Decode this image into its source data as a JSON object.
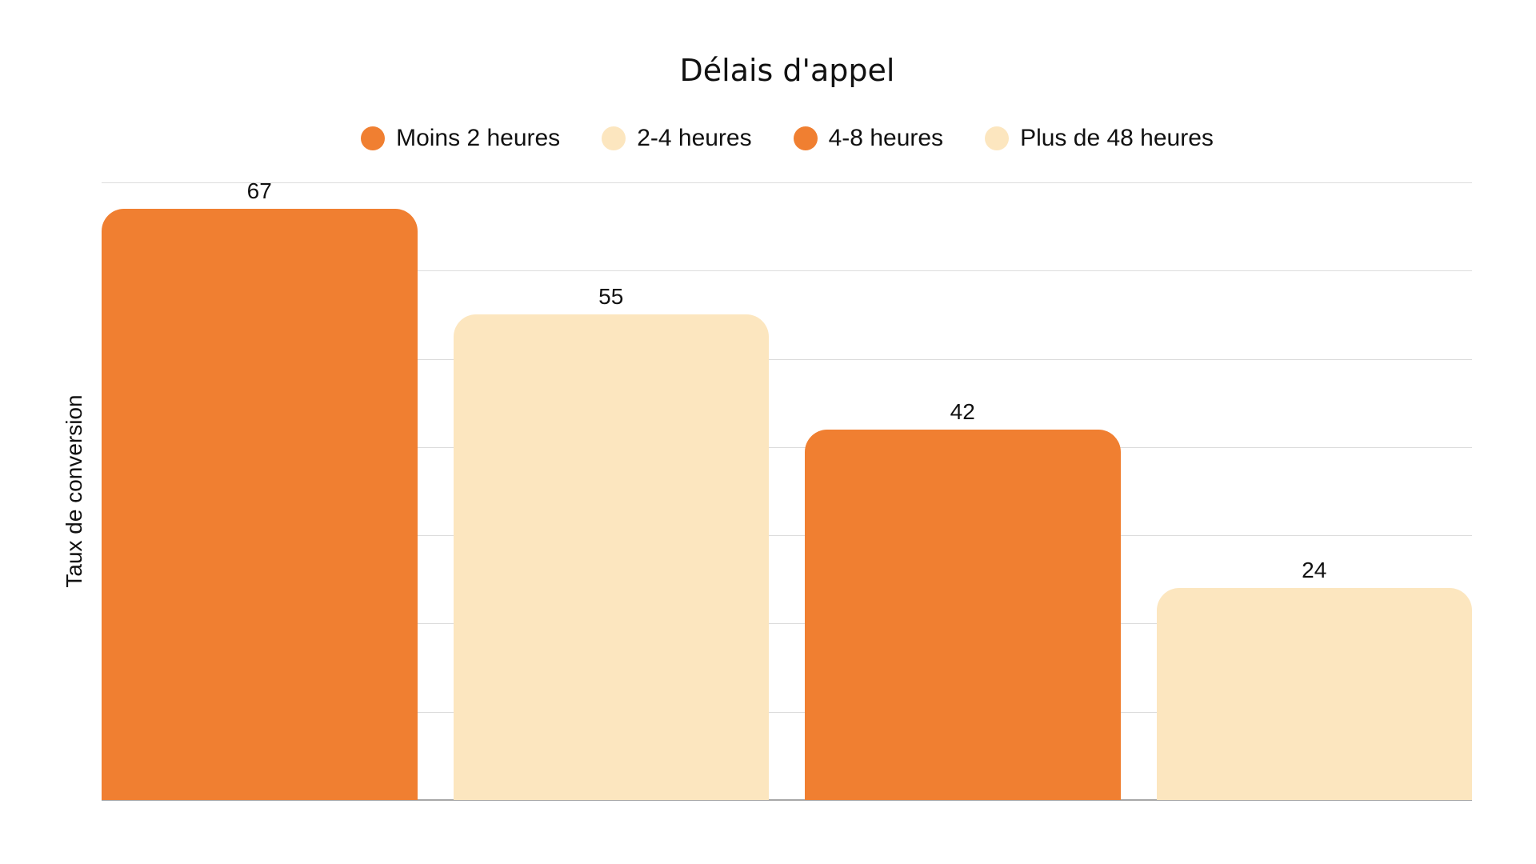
{
  "title": "Délais d'appel",
  "legend": [
    {
      "label": "Moins 2 heures",
      "color": "#F07F31"
    },
    {
      "label": "2-4 heures",
      "color": "#FCE6BF"
    },
    {
      "label": "4-8 heures",
      "color": "#F07F31"
    },
    {
      "label": "Plus de 48 heures",
      "color": "#FCE6BF"
    }
  ],
  "chart_data": {
    "type": "bar",
    "title": "Délais d'appel",
    "xlabel": "",
    "ylabel": "Taux de conversion",
    "categories": [
      "Moins 2 heures",
      "2-4 heures",
      "4-8 heures",
      "Plus de 48 heures"
    ],
    "values": [
      67,
      55,
      42,
      24
    ],
    "colors": [
      "#F07F31",
      "#FCE6BF",
      "#F07F31",
      "#FCE6BF"
    ],
    "ylim": [
      0,
      70
    ],
    "gridlines": [
      0,
      10,
      20,
      30,
      40,
      50,
      60,
      70
    ],
    "grid": true,
    "y_tick_labels_visible": false,
    "x_tick_labels_visible": false,
    "data_labels": [
      "67",
      "55",
      "42",
      "24"
    ],
    "legend_position": "top"
  }
}
